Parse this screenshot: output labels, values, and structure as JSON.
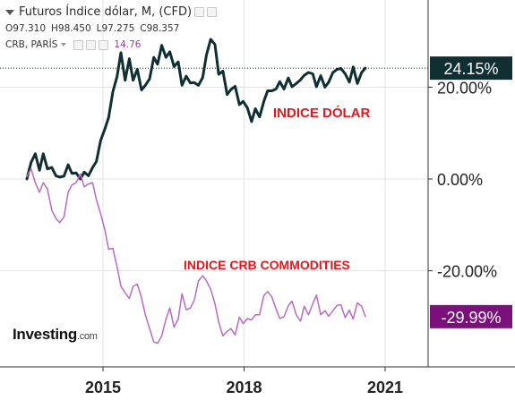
{
  "legend": {
    "title": "Futuros Índice dólar, M, (CFD)",
    "open": "O97.310",
    "high": "H98.450",
    "low": "L97.275",
    "close": "C98.357",
    "secondary_name": "CRB, PARÍS",
    "secondary_value": "14.76"
  },
  "annotations": {
    "dxy": "INDICE DÓLAR",
    "crb": "INDICE CRB COMMODITIES"
  },
  "logo": {
    "main": "Investing",
    "suffix": ".com"
  },
  "colors": {
    "dxy_line": "#0f2f33",
    "crb_line": "#b86bc3",
    "dxy_badge": "#0f2f33",
    "crb_badge": "#7b0f7b",
    "annotation": "#e8161c"
  },
  "chart_data": {
    "type": "line",
    "x_ticks": [
      "2015",
      "2018",
      "2021"
    ],
    "y_ticks": [
      "20.00%",
      "0.00%",
      "-20.00%"
    ],
    "y_unit": "percent",
    "ylim": [
      -43,
      38
    ],
    "grid": true,
    "last_values": {
      "dxy": "24.15%",
      "crb": "-29.99%"
    },
    "series": [
      {
        "name": "Futuros Índice dólar",
        "x": [
          2013.38,
          2013.47,
          2013.56,
          2013.65,
          2013.73,
          2013.82,
          2013.91,
          2014.0,
          2014.08,
          2014.17,
          2014.26,
          2014.34,
          2014.43,
          2014.52,
          2014.6,
          2014.69,
          2014.78,
          2014.86,
          2014.95,
          2015.04,
          2015.12,
          2015.21,
          2015.3,
          2015.38,
          2015.47,
          2015.56,
          2015.64,
          2015.73,
          2015.82,
          2015.9,
          2015.99,
          2016.08,
          2016.16,
          2016.25,
          2016.34,
          2016.42,
          2016.51,
          2016.6,
          2016.68,
          2016.77,
          2016.86,
          2016.94,
          2017.03,
          2017.12,
          2017.2,
          2017.29,
          2017.38,
          2017.46,
          2017.55,
          2017.64,
          2017.72,
          2017.81,
          2017.9,
          2017.98,
          2018.07,
          2018.16,
          2018.24,
          2018.33,
          2018.42,
          2018.5,
          2018.59,
          2018.68,
          2018.76,
          2018.85,
          2018.94,
          2019.02,
          2019.11,
          2019.2,
          2019.28,
          2019.37,
          2019.46,
          2019.54,
          2019.63,
          2019.72,
          2019.8,
          2019.89,
          2019.98,
          2020.06,
          2020.15,
          2020.24,
          2020.32,
          2020.41,
          2020.5,
          2020.58
        ],
        "values": [
          0.0,
          3.6,
          5.5,
          1.9,
          5.5,
          2.2,
          2.5,
          0.7,
          0.4,
          0.6,
          3.1,
          1.2,
          1.3,
          0.0,
          1.5,
          0.7,
          2.5,
          3.8,
          8.4,
          10.9,
          13.4,
          19.0,
          22.3,
          27.5,
          21.5,
          26.2,
          21.5,
          23.9,
          19.4,
          20.4,
          21.8,
          26.5,
          25.0,
          29.1,
          26.5,
          27.7,
          24.5,
          25.5,
          20.4,
          22.4,
          20.9,
          21.0,
          20.4,
          22.1,
          27.0,
          30.4,
          29.3,
          22.8,
          23.5,
          18.4,
          19.5,
          20.2,
          16.2,
          16.9,
          15.5,
          12.5,
          15.3,
          13.5,
          16.9,
          19.2,
          19.2,
          19.6,
          21.2,
          19.6,
          22.0,
          20.1,
          20.8,
          21.6,
          22.6,
          23.2,
          22.9,
          20.1,
          22.5,
          20.0,
          21.1,
          23.2,
          23.9,
          24.1,
          22.9,
          21.1,
          24.4,
          20.8,
          23.2,
          24.15
        ]
      },
      {
        "name": "CRB, PARÍS",
        "x": [
          2013.38,
          2013.47,
          2013.56,
          2013.65,
          2013.73,
          2013.82,
          2013.91,
          2014.0,
          2014.08,
          2014.17,
          2014.26,
          2014.34,
          2014.43,
          2014.52,
          2014.6,
          2014.69,
          2014.78,
          2014.86,
          2014.95,
          2015.04,
          2015.12,
          2015.21,
          2015.3,
          2015.38,
          2015.47,
          2015.56,
          2015.64,
          2015.73,
          2015.82,
          2015.9,
          2015.99,
          2016.08,
          2016.16,
          2016.25,
          2016.34,
          2016.42,
          2016.51,
          2016.6,
          2016.68,
          2016.77,
          2016.86,
          2016.94,
          2017.03,
          2017.12,
          2017.2,
          2017.29,
          2017.38,
          2017.46,
          2017.55,
          2017.64,
          2017.72,
          2017.81,
          2017.9,
          2017.98,
          2018.07,
          2018.16,
          2018.24,
          2018.33,
          2018.42,
          2018.5,
          2018.59,
          2018.68,
          2018.76,
          2018.85,
          2018.94,
          2019.02,
          2019.11,
          2019.2,
          2019.28,
          2019.37,
          2019.46,
          2019.54,
          2019.63,
          2019.72,
          2019.8,
          2019.89,
          2019.98,
          2020.06,
          2020.15,
          2020.24,
          2020.32,
          2020.41,
          2020.5,
          2020.58
        ],
        "values": [
          0.5,
          2.2,
          -0.8,
          -2.9,
          -0.8,
          -2.2,
          -6.8,
          -8.6,
          -9.5,
          -8.3,
          -2.9,
          -1.3,
          -0.8,
          1.1,
          -1.7,
          -1.1,
          -0.8,
          -4.5,
          -7.6,
          -11.1,
          -15.3,
          -15.1,
          -19.1,
          -23.4,
          -24.8,
          -26.0,
          -23.4,
          -22.9,
          -25.9,
          -29.6,
          -32.6,
          -35.5,
          -35.8,
          -34.2,
          -30.5,
          -28.1,
          -32.3,
          -30.5,
          -25.0,
          -28.5,
          -28.1,
          -26.4,
          -22.2,
          -21.1,
          -22.2,
          -24.0,
          -27.2,
          -31.2,
          -34.2,
          -33.2,
          -32.6,
          -34.0,
          -30.1,
          -31.5,
          -30.4,
          -30.7,
          -29.6,
          -29.6,
          -25.4,
          -24.5,
          -25.7,
          -28.3,
          -30.4,
          -30.0,
          -27.6,
          -26.6,
          -29.6,
          -31.0,
          -27.7,
          -29.6,
          -27.2,
          -25.3,
          -29.6,
          -28.7,
          -29.9,
          -28.7,
          -27.5,
          -27.4,
          -30.2,
          -28.6,
          -30.5,
          -27.0,
          -27.7,
          -29.99
        ]
      }
    ]
  }
}
